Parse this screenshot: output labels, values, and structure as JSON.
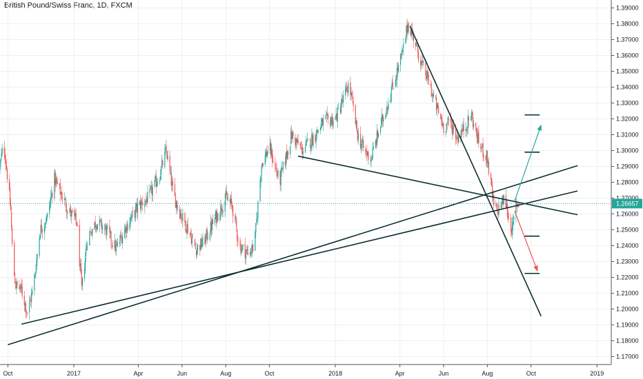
{
  "title": "British Pound/Swiss Franc, 1D, FXCM",
  "chart_data": {
    "type": "candlestick",
    "title": "British Pound/Swiss Franc, 1D, FXCM",
    "symbol": "GBPCHF",
    "timeframe": "1D",
    "source": "FXCM",
    "ylim": [
      1.165,
      1.395
    ],
    "x_range": [
      "2016-09-20",
      "2019-01-20"
    ],
    "yticks": [
      "1.17000",
      "1.18000",
      "1.19000",
      "1.20000",
      "1.21000",
      "1.22000",
      "1.23000",
      "1.24000",
      "1.25000",
      "1.26000",
      "1.27000",
      "1.28000",
      "1.29000",
      "1.30000",
      "1.31000",
      "1.32000",
      "1.33000",
      "1.34000",
      "1.35000",
      "1.36000",
      "1.37000",
      "1.38000",
      "1.39000"
    ],
    "xticks": [
      {
        "date": "2016-10-01",
        "label": "Oct"
      },
      {
        "date": "2017-01-01",
        "label": "2017"
      },
      {
        "date": "2017-04-01",
        "label": "Apr"
      },
      {
        "date": "2017-06-01",
        "label": "Jun"
      },
      {
        "date": "2017-08-01",
        "label": "Aug"
      },
      {
        "date": "2017-10-01",
        "label": "Oct"
      },
      {
        "date": "2018-01-01",
        "label": "2018"
      },
      {
        "date": "2018-04-01",
        "label": "Apr"
      },
      {
        "date": "2018-06-01",
        "label": "Jun"
      },
      {
        "date": "2018-08-01",
        "label": "Aug"
      },
      {
        "date": "2018-10-01",
        "label": "Oct"
      },
      {
        "date": "2019-01-01",
        "label": "2019"
      }
    ],
    "last_price": {
      "value": 1.26657,
      "label": "1.26657"
    },
    "price_path": [
      [
        "2016-09-20",
        1.29
      ],
      [
        "2016-09-25",
        1.305
      ],
      [
        "2016-09-30",
        1.285
      ],
      [
        "2016-10-05",
        1.262
      ],
      [
        "2016-10-08",
        1.228
      ],
      [
        "2016-10-12",
        1.215
      ],
      [
        "2016-10-20",
        1.212
      ],
      [
        "2016-10-28",
        1.198
      ],
      [
        "2016-11-05",
        1.212
      ],
      [
        "2016-11-15",
        1.25
      ],
      [
        "2016-11-25",
        1.258
      ],
      [
        "2016-12-05",
        1.282
      ],
      [
        "2016-12-15",
        1.272
      ],
      [
        "2016-12-25",
        1.262
      ],
      [
        "2017-01-05",
        1.255
      ],
      [
        "2017-01-12",
        1.212
      ],
      [
        "2017-01-20",
        1.245
      ],
      [
        "2017-02-01",
        1.255
      ],
      [
        "2017-02-15",
        1.25
      ],
      [
        "2017-03-01",
        1.238
      ],
      [
        "2017-03-15",
        1.252
      ],
      [
        "2017-04-01",
        1.265
      ],
      [
        "2017-04-15",
        1.27
      ],
      [
        "2017-05-01",
        1.285
      ],
      [
        "2017-05-10",
        1.3
      ],
      [
        "2017-05-20",
        1.272
      ],
      [
        "2017-06-01",
        1.258
      ],
      [
        "2017-06-10",
        1.25
      ],
      [
        "2017-06-20",
        1.238
      ],
      [
        "2017-07-01",
        1.242
      ],
      [
        "2017-07-15",
        1.255
      ],
      [
        "2017-08-01",
        1.27
      ],
      [
        "2017-08-10",
        1.265
      ],
      [
        "2017-08-20",
        1.24
      ],
      [
        "2017-09-01",
        1.235
      ],
      [
        "2017-09-10",
        1.24
      ],
      [
        "2017-09-20",
        1.292
      ],
      [
        "2017-10-01",
        1.302
      ],
      [
        "2017-10-15",
        1.28
      ],
      [
        "2017-11-01",
        1.31
      ],
      [
        "2017-11-15",
        1.3
      ],
      [
        "2017-12-01",
        1.308
      ],
      [
        "2017-12-15",
        1.318
      ],
      [
        "2018-01-01",
        1.32
      ],
      [
        "2018-01-10",
        1.33
      ],
      [
        "2018-01-20",
        1.342
      ],
      [
        "2018-02-01",
        1.31
      ],
      [
        "2018-02-10",
        1.3
      ],
      [
        "2018-02-20",
        1.295
      ],
      [
        "2018-03-01",
        1.31
      ],
      [
        "2018-03-15",
        1.33
      ],
      [
        "2018-03-25",
        1.345
      ],
      [
        "2018-04-05",
        1.362
      ],
      [
        "2018-04-12",
        1.38
      ],
      [
        "2018-04-20",
        1.372
      ],
      [
        "2018-05-01",
        1.355
      ],
      [
        "2018-05-10",
        1.345
      ],
      [
        "2018-05-20",
        1.33
      ],
      [
        "2018-06-01",
        1.315
      ],
      [
        "2018-06-10",
        1.318
      ],
      [
        "2018-06-20",
        1.308
      ],
      [
        "2018-07-01",
        1.315
      ],
      [
        "2018-07-10",
        1.322
      ],
      [
        "2018-07-20",
        1.305
      ],
      [
        "2018-08-01",
        1.295
      ],
      [
        "2018-08-10",
        1.265
      ],
      [
        "2018-08-15",
        1.262
      ],
      [
        "2018-08-25",
        1.27
      ],
      [
        "2018-09-01",
        1.255
      ],
      [
        "2018-09-05",
        1.25
      ],
      [
        "2018-09-10",
        1.265
      ],
      [
        "2018-09-15",
        1.268
      ]
    ],
    "trendlines": [
      {
        "from": [
          "2016-10-01",
          1.1775
        ],
        "to": [
          "2018-12-05",
          1.2905
        ]
      },
      {
        "from": [
          "2016-10-20",
          1.1905
        ],
        "to": [
          "2018-12-05",
          1.2745
        ]
      },
      {
        "from": [
          "2017-11-10",
          1.2965
        ],
        "to": [
          "2018-12-05",
          1.2595
        ]
      },
      {
        "from": [
          "2018-04-15",
          1.3785
        ],
        "to": [
          "2018-10-15",
          1.1955
        ]
      }
    ],
    "target_levels": [
      {
        "from": "2018-09-22",
        "to": "2018-10-13",
        "value": 1.3225
      },
      {
        "from": "2018-09-22",
        "to": "2018-10-13",
        "value": 1.299
      },
      {
        "from": "2018-09-22",
        "to": "2018-10-13",
        "value": 1.246
      },
      {
        "from": "2018-09-22",
        "to": "2018-10-13",
        "value": 1.2225
      }
    ],
    "arrows": [
      {
        "direction": "up",
        "color": "#26a69a",
        "from": [
          "2018-09-08",
          1.268
        ],
        "to": [
          "2018-10-15",
          1.316
        ]
      },
      {
        "direction": "down",
        "color": "#ef5350",
        "from": [
          "2018-09-08",
          1.262
        ],
        "to": [
          "2018-10-10",
          1.224
        ]
      }
    ],
    "colors": {
      "up": "#26a69a",
      "down": "#ef5350",
      "trendline": "#0b2e2e",
      "grid": "#eceff3"
    },
    "grid": true,
    "legend": "none"
  }
}
